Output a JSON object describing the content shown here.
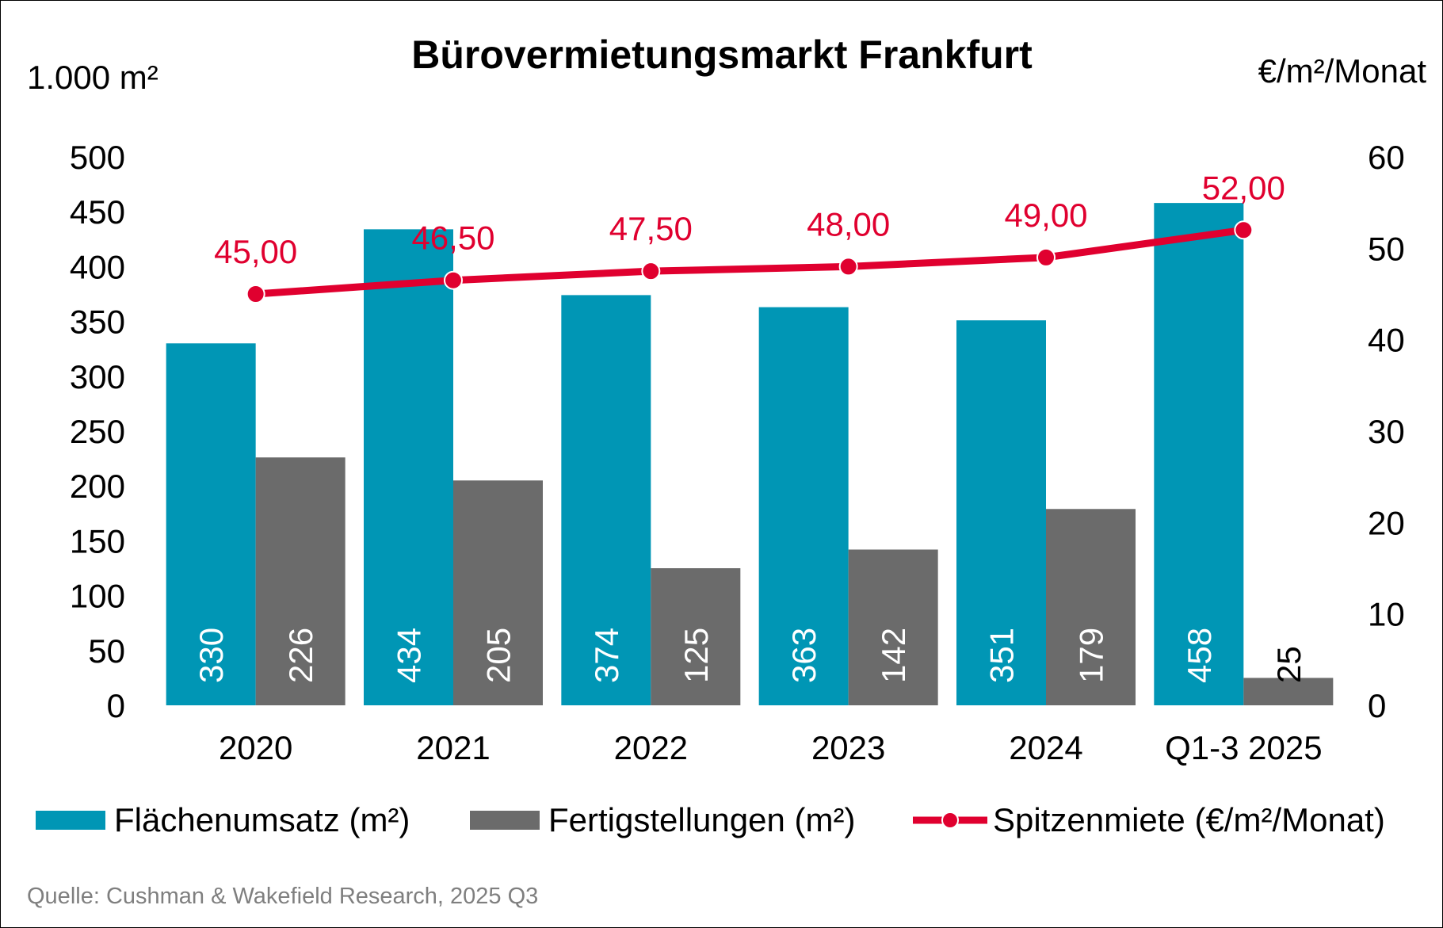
{
  "chart_data": {
    "type": "bar",
    "title": "Bürovermietungsmarkt Frankfurt",
    "ylabel_left": "1.000 m²",
    "ylabel_right": "€/m²/Monat",
    "categories": [
      "2020",
      "2021",
      "2022",
      "2023",
      "2024",
      "Q1-3 2025"
    ],
    "ylim_left": [
      0,
      500
    ],
    "yticks_left": [
      "0",
      "50",
      "100",
      "150",
      "200",
      "250",
      "300",
      "350",
      "400",
      "450",
      "500"
    ],
    "ylim_right": [
      0,
      60
    ],
    "yticks_right": [
      "0",
      "10",
      "20",
      "30",
      "40",
      "50",
      "60"
    ],
    "grid": false,
    "legend_position": "bottom",
    "series": [
      {
        "name": "Flächenumsatz (m²)",
        "type": "bar",
        "axis": "left",
        "color": "#0096b5",
        "values": [
          330,
          434,
          374,
          363,
          351,
          458
        ],
        "labels": [
          "330",
          "434",
          "374",
          "363",
          "351",
          "458"
        ]
      },
      {
        "name": "Fertigstellungen (m²)",
        "type": "bar",
        "axis": "left",
        "color": "#6b6b6b",
        "values": [
          226,
          205,
          125,
          142,
          179,
          25
        ],
        "labels": [
          "226",
          "205",
          "125",
          "142",
          "179",
          "25"
        ]
      },
      {
        "name": "Spitzenmiete (€/m²/Monat)",
        "type": "line",
        "axis": "right",
        "color": "#e0002f",
        "values": [
          45.0,
          46.5,
          47.5,
          48.0,
          49.0,
          52.0
        ],
        "labels": [
          "45,00",
          "46,50",
          "47,50",
          "48,00",
          "49,00",
          "52,00"
        ]
      }
    ],
    "source": "Quelle: Cushman & Wakefield Research, 2025 Q3"
  }
}
